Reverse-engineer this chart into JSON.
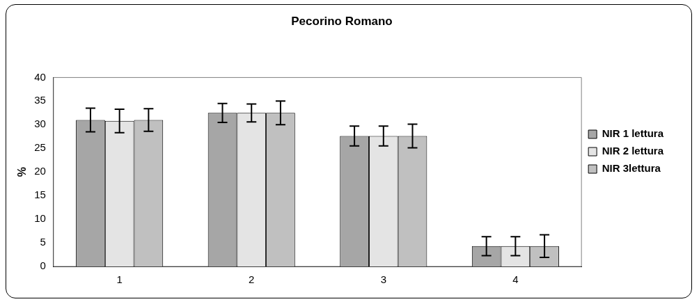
{
  "chart_data": {
    "type": "bar",
    "title": "Pecorino Romano",
    "ylabel": "%",
    "categories": [
      "1",
      "2",
      "3",
      "4"
    ],
    "series": [
      {
        "name": "NIR 1 lettura",
        "color": "#a6a6a6",
        "values": [
          31.0,
          32.5,
          27.6,
          4.3
        ],
        "errors": [
          2.5,
          2.0,
          2.1,
          2.0
        ]
      },
      {
        "name": "NIR 2 lettura",
        "color": "#e4e4e4",
        "values": [
          30.8,
          32.5,
          27.6,
          4.3
        ],
        "errors": [
          2.5,
          1.9,
          2.1,
          2.0
        ]
      },
      {
        "name": "NIR 3lettura",
        "color": "#c0c0c0",
        "values": [
          31.0,
          32.5,
          27.6,
          4.3
        ],
        "errors": [
          2.4,
          2.5,
          2.5,
          2.4
        ]
      }
    ],
    "ylim": [
      0,
      40
    ],
    "yticks": [
      0,
      5,
      10,
      15,
      20,
      25,
      30,
      35,
      40
    ],
    "grid": false,
    "legend": "right"
  }
}
